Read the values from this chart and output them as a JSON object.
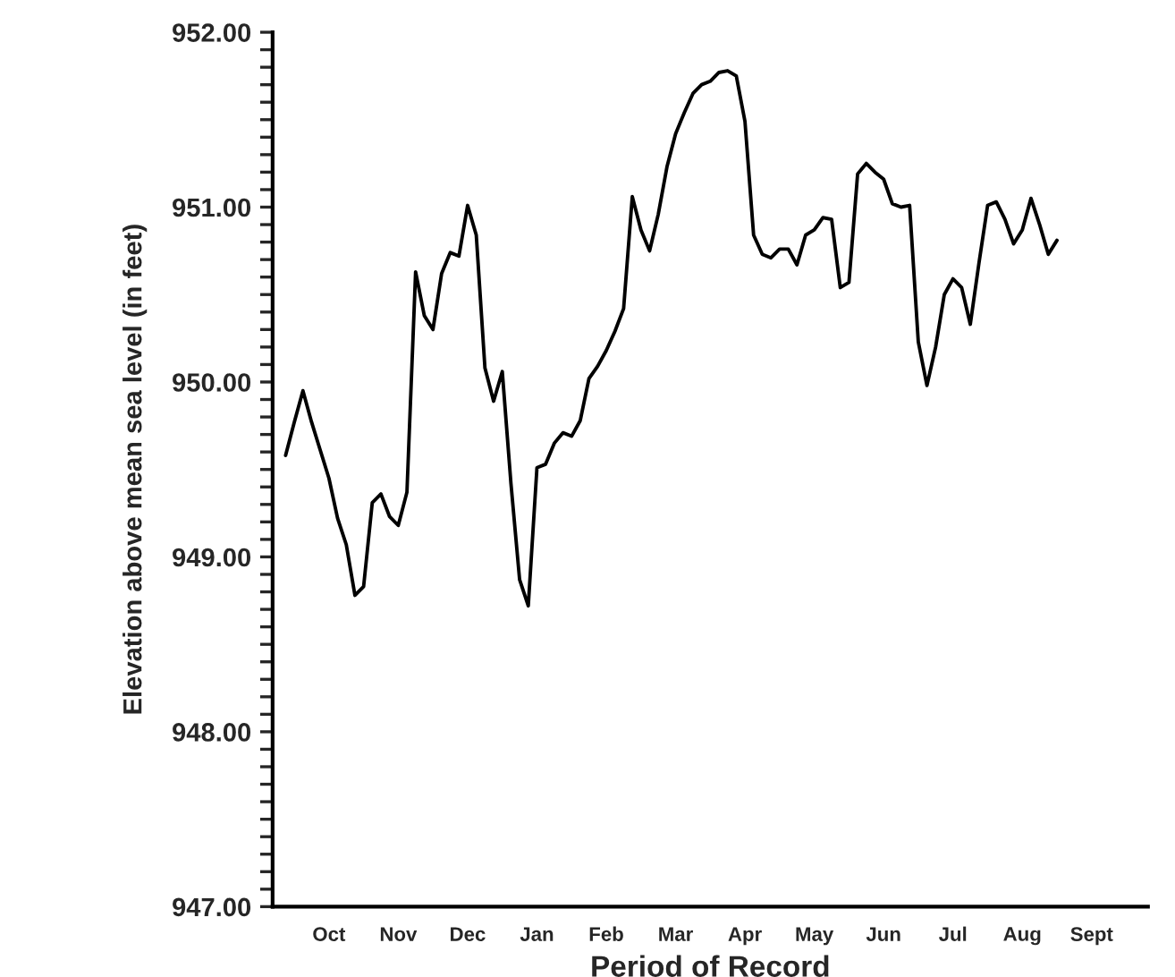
{
  "chart_data": {
    "type": "line",
    "xlabel": "Period of Record",
    "ylabel": "Elevation above mean sea level (in feet)",
    "categories": [
      null,
      null,
      null,
      null,
      null,
      null,
      "Oct",
      null,
      null,
      null,
      null,
      null,
      null,
      null,
      "Nov",
      null,
      null,
      null,
      null,
      null,
      null,
      null,
      "Dec",
      null,
      null,
      null,
      null,
      null,
      null,
      null,
      "Jan",
      null,
      null,
      null,
      null,
      null,
      null,
      null,
      "Feb",
      null,
      null,
      null,
      null,
      null,
      null,
      null,
      "Mar",
      null,
      null,
      null,
      null,
      null,
      null,
      null,
      "Apr",
      null,
      null,
      null,
      null,
      null,
      null,
      null,
      "May",
      null,
      null,
      null,
      null,
      null,
      null,
      null,
      "Jun",
      null,
      null,
      null,
      null,
      null,
      null,
      null,
      "Jul",
      null,
      null,
      null,
      null,
      null,
      null,
      null,
      "Aug",
      null,
      null,
      null,
      null,
      null,
      null,
      null,
      "Sept",
      null,
      null,
      null,
      null,
      null,
      null
    ],
    "series": [
      {
        "color": "#000000",
        "values": [
          null,
          949.58,
          949.77,
          949.95,
          949.77,
          949.61,
          949.45,
          949.22,
          949.07,
          948.78,
          948.83,
          949.31,
          949.36,
          949.23,
          949.18,
          949.37,
          950.63,
          950.38,
          950.3,
          950.62,
          950.74,
          950.72,
          951.01,
          950.84,
          950.08,
          949.89,
          950.06,
          949.42,
          948.87,
          948.72,
          949.51,
          949.53,
          949.65,
          949.71,
          949.69,
          949.78,
          950.02,
          950.09,
          950.18,
          950.29,
          950.42,
          951.06,
          950.87,
          950.75,
          950.96,
          951.23,
          951.42,
          951.54,
          951.65,
          951.7,
          951.72,
          951.77,
          951.78,
          951.75,
          951.49,
          950.84,
          950.73,
          950.71,
          950.76,
          950.76,
          950.67,
          950.84,
          950.87,
          950.94,
          950.93,
          950.54,
          950.57,
          951.19,
          951.25,
          951.2,
          951.16,
          951.02,
          951.0,
          951.01,
          950.23,
          949.98,
          950.2,
          950.5,
          950.59,
          950.54,
          950.33,
          950.68,
          951.01,
          951.03,
          950.93,
          950.79,
          950.87,
          951.05,
          950.9,
          950.73,
          950.81,
          null,
          null,
          null,
          null,
          null,
          null,
          null,
          null,
          null,
          null
        ]
      }
    ],
    "ylim": [
      947,
      952
    ],
    "yticks": [
      {
        "value": 947,
        "label": "947.00"
      },
      {
        "value": 947.1,
        "label": null
      },
      {
        "value": 947.2,
        "label": null
      },
      {
        "value": 947.3,
        "label": null
      },
      {
        "value": 947.4,
        "label": null
      },
      {
        "value": 947.5,
        "label": null
      },
      {
        "value": 947.6,
        "label": null
      },
      {
        "value": 947.7,
        "label": null
      },
      {
        "value": 947.8,
        "label": null
      },
      {
        "value": 947.9,
        "label": null
      },
      {
        "value": 948,
        "label": "948.00"
      },
      {
        "value": 948.1,
        "label": null
      },
      {
        "value": 948.2,
        "label": null
      },
      {
        "value": 948.3,
        "label": null
      },
      {
        "value": 948.4,
        "label": null
      },
      {
        "value": 948.5,
        "label": null
      },
      {
        "value": 948.6,
        "label": null
      },
      {
        "value": 948.7,
        "label": null
      },
      {
        "value": 948.8,
        "label": null
      },
      {
        "value": 948.9,
        "label": null
      },
      {
        "value": 949,
        "label": "949.00"
      },
      {
        "value": 949.1,
        "label": null
      },
      {
        "value": 949.2,
        "label": null
      },
      {
        "value": 949.3,
        "label": null
      },
      {
        "value": 949.4,
        "label": null
      },
      {
        "value": 949.5,
        "label": null
      },
      {
        "value": 949.6,
        "label": null
      },
      {
        "value": 949.7,
        "label": null
      },
      {
        "value": 949.8,
        "label": null
      },
      {
        "value": 949.9,
        "label": null
      },
      {
        "value": 950,
        "label": "950.00"
      },
      {
        "value": 950.1,
        "label": null
      },
      {
        "value": 950.2,
        "label": null
      },
      {
        "value": 950.3,
        "label": null
      },
      {
        "value": 950.4,
        "label": null
      },
      {
        "value": 950.5,
        "label": null
      },
      {
        "value": 950.6,
        "label": null
      },
      {
        "value": 950.7,
        "label": null
      },
      {
        "value": 950.8,
        "label": null
      },
      {
        "value": 950.9,
        "label": null
      },
      {
        "value": 951,
        "label": "951.00"
      },
      {
        "value": 951.1,
        "label": null
      },
      {
        "value": 951.2,
        "label": null
      },
      {
        "value": 951.3,
        "label": null
      },
      {
        "value": 951.4,
        "label": null
      },
      {
        "value": 951.5,
        "label": null
      },
      {
        "value": 951.6,
        "label": null
      },
      {
        "value": 951.7,
        "label": null
      },
      {
        "value": 951.8,
        "label": null
      },
      {
        "value": 951.9,
        "label": null
      },
      {
        "value": 952,
        "label": "952.00"
      }
    ],
    "grid": false,
    "legend": false,
    "marker": "none",
    "line_style": "solid"
  }
}
